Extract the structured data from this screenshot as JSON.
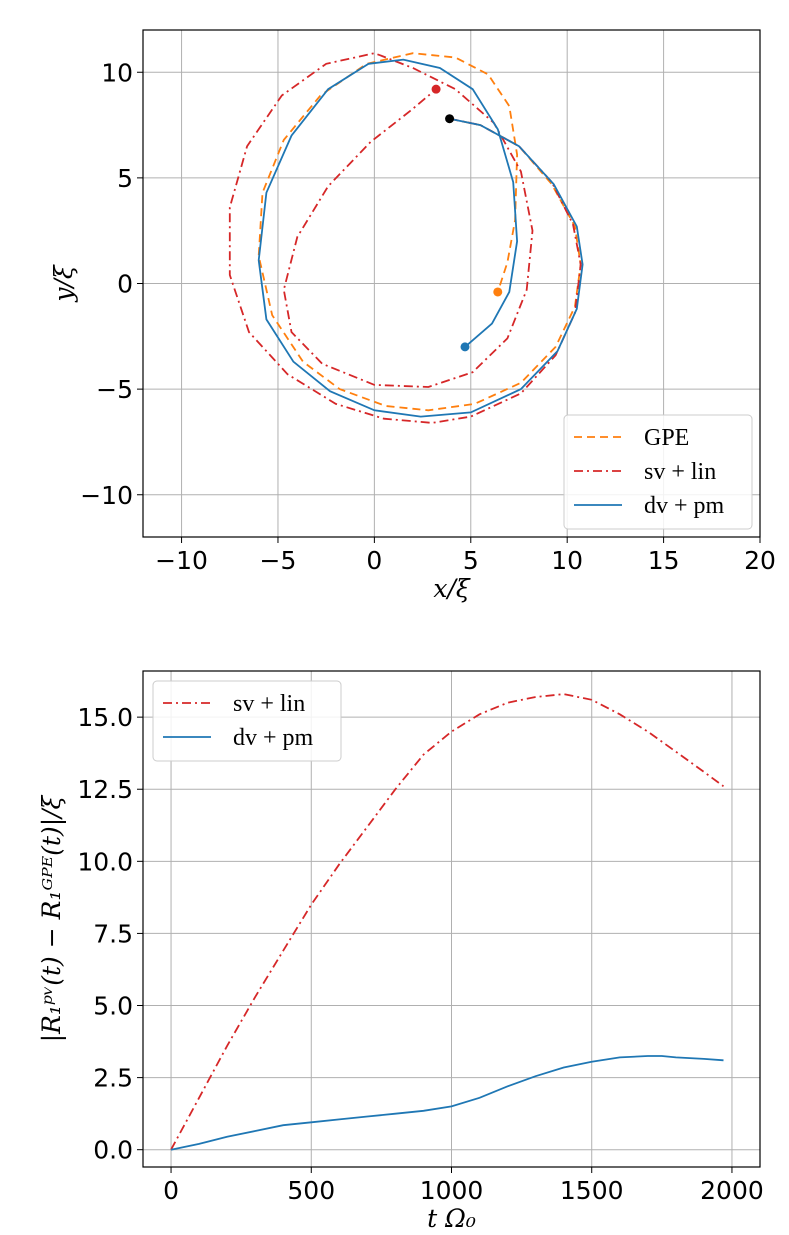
{
  "chart_data": [
    {
      "type": "line",
      "xlabel": "x/ξ",
      "ylabel": "y/ξ",
      "xlim": [
        -12,
        20
      ],
      "ylim": [
        -12,
        12
      ],
      "xticks": [
        -10,
        -5,
        0,
        5,
        10,
        15,
        20
      ],
      "yticks": [
        -10,
        -5,
        0,
        5,
        10
      ],
      "xtick_labels": [
        "−10",
        "−5",
        "0",
        "5",
        "10",
        "15",
        "20"
      ],
      "ytick_labels": [
        "−10",
        "−5",
        "0",
        "5",
        "10"
      ],
      "grid": true,
      "legend_position": "lower-right",
      "start_point": {
        "x": 3.9,
        "y": 7.8,
        "color": "#000000"
      },
      "series": [
        {
          "name": "GPE",
          "color": "#ff7f0e",
          "dash": "8,5",
          "end_color": "#ff7f0e",
          "x": [
            3.9,
            5.5,
            7.5,
            9.2,
            10.4,
            10.7,
            10.4,
            9.4,
            7.6,
            5.2,
            2.8,
            0.6,
            -1.8,
            -3.7,
            -5.3,
            -6.0,
            -5.8,
            -4.7,
            -2.8,
            -0.4,
            2.0,
            4.2,
            5.9,
            7.0,
            7.4,
            7.3,
            6.9,
            6.4
          ],
          "y": [
            7.8,
            7.5,
            6.5,
            4.7,
            2.7,
            0.9,
            -1.1,
            -3.0,
            -4.7,
            -5.7,
            -6.0,
            -5.8,
            -5.0,
            -3.7,
            -1.5,
            1.3,
            4.3,
            6.8,
            8.9,
            10.4,
            10.9,
            10.7,
            9.9,
            8.4,
            6.1,
            3.0,
            1.0,
            -0.4
          ]
        },
        {
          "name": "sv + lin",
          "color": "#d62728",
          "dash": "9,4,2,4",
          "end_color": "#d62728",
          "x": [
            3.9,
            5.5,
            7.5,
            9.2,
            10.3,
            10.7,
            10.4,
            9.4,
            7.6,
            5.0,
            3.0,
            0.5,
            -2.0,
            -4.5,
            -6.5,
            -7.5,
            -7.5,
            -6.6,
            -4.8,
            -2.5,
            0.0,
            0.3,
            0.3,
            2.0,
            4.2,
            6.2,
            7.6,
            8.2,
            7.9,
            6.9,
            5.1,
            2.8,
            0.0,
            -2.7,
            -4.3,
            -4.7,
            -4.0,
            -2.4,
            -0.2,
            1.9,
            3.2
          ],
          "y": [
            7.8,
            7.5,
            6.5,
            4.8,
            2.8,
            0.9,
            -1.4,
            -3.4,
            -5.2,
            -6.3,
            -6.6,
            -6.4,
            -5.7,
            -4.3,
            -2.3,
            0.4,
            3.6,
            6.5,
            8.9,
            10.4,
            10.9,
            10.8,
            10.8,
            10.2,
            9.2,
            7.6,
            5.3,
            2.5,
            -0.3,
            -2.6,
            -4.2,
            -4.9,
            -4.8,
            -3.8,
            -2.3,
            -0.3,
            2.2,
            4.6,
            6.7,
            8.2,
            9.2
          ]
        },
        {
          "name": "dv + pm",
          "color": "#1f77b4",
          "dash": "none",
          "end_color": "#1f77b4",
          "x": [
            3.9,
            5.5,
            7.5,
            9.3,
            10.5,
            10.8,
            10.5,
            9.5,
            7.6,
            5.0,
            2.4,
            0.0,
            -2.3,
            -4.2,
            -5.6,
            -6.0,
            -5.6,
            -4.3,
            -2.4,
            -0.3,
            1.5,
            3.4,
            5.1,
            6.4,
            7.2,
            7.4,
            7.0,
            6.1,
            4.7
          ],
          "y": [
            7.8,
            7.5,
            6.5,
            4.7,
            2.7,
            0.9,
            -1.2,
            -3.2,
            -5.0,
            -6.1,
            -6.3,
            -6.0,
            -5.1,
            -3.7,
            -1.7,
            1.1,
            4.3,
            7.0,
            9.2,
            10.4,
            10.6,
            10.2,
            9.2,
            7.3,
            4.8,
            2.0,
            -0.4,
            -1.9,
            -3.0
          ]
        }
      ]
    },
    {
      "type": "line",
      "xlabel": "t Ω₀",
      "ylabel": "|R₁ᵖᵛ(t) − R₁ᴳᴾᴱ(t)|/ξ",
      "xlim": [
        -100,
        2100
      ],
      "ylim": [
        -0.6,
        16.6
      ],
      "xticks": [
        0,
        500,
        1000,
        1500,
        2000
      ],
      "yticks": [
        0.0,
        2.5,
        5.0,
        7.5,
        10.0,
        12.5,
        15.0
      ],
      "xtick_labels": [
        "0",
        "500",
        "1000",
        "1500",
        "2000"
      ],
      "ytick_labels": [
        "0.0",
        "2.5",
        "5.0",
        "7.5",
        "10.0",
        "12.5",
        "15.0"
      ],
      "grid": true,
      "legend_position": "upper-left",
      "series": [
        {
          "name": "sv + lin",
          "color": "#d62728",
          "dash": "9,4,2,4",
          "x": [
            0,
            100,
            200,
            300,
            400,
            500,
            600,
            700,
            800,
            900,
            1000,
            1100,
            1200,
            1300,
            1400,
            1500,
            1600,
            1700,
            1800,
            1900,
            1970
          ],
          "y": [
            0.0,
            1.8,
            3.6,
            5.3,
            6.9,
            8.5,
            9.9,
            11.2,
            12.5,
            13.7,
            14.5,
            15.1,
            15.5,
            15.7,
            15.8,
            15.6,
            15.1,
            14.5,
            13.8,
            13.1,
            12.6
          ]
        },
        {
          "name": "dv + pm",
          "color": "#1f77b4",
          "dash": "none",
          "x": [
            0,
            100,
            200,
            300,
            400,
            500,
            600,
            700,
            800,
            900,
            1000,
            1100,
            1200,
            1300,
            1400,
            1500,
            1600,
            1700,
            1750,
            1800,
            1900,
            1970
          ],
          "y": [
            0.0,
            0.2,
            0.45,
            0.65,
            0.85,
            0.95,
            1.05,
            1.15,
            1.25,
            1.35,
            1.5,
            1.8,
            2.2,
            2.55,
            2.85,
            3.05,
            3.2,
            3.25,
            3.25,
            3.2,
            3.15,
            3.1
          ]
        }
      ]
    }
  ]
}
